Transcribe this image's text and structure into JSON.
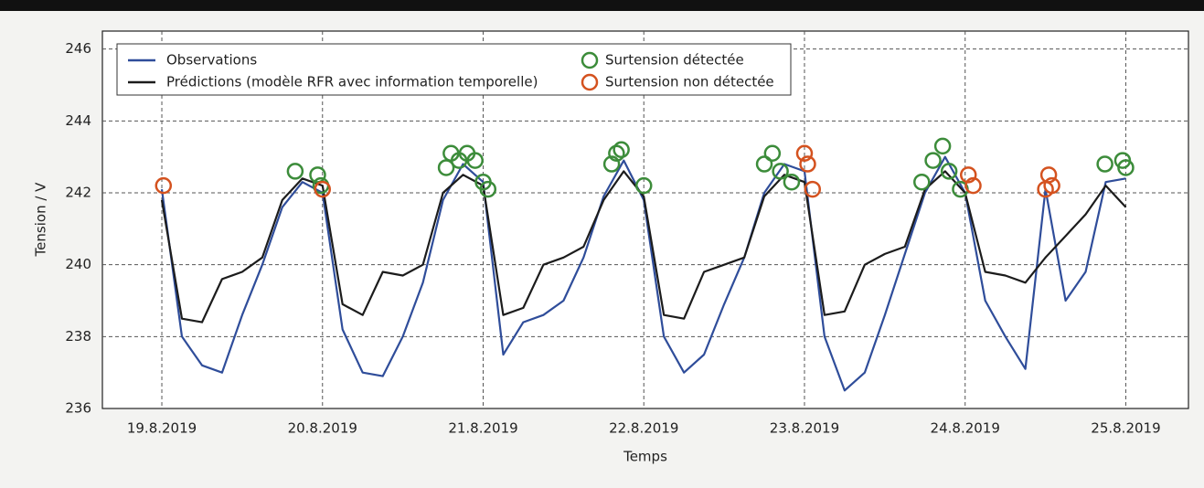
{
  "chart_data": {
    "type": "line",
    "xlabel": "Temps",
    "ylabel": "Tension / V",
    "legend": "upper left",
    "grid": true,
    "xlim": [
      18.63,
      25.39
    ],
    "xticks": [
      {
        "value": 19,
        "label": "19.8.2019"
      },
      {
        "value": 20,
        "label": "20.8.2019"
      },
      {
        "value": 21,
        "label": "21.8.2019"
      },
      {
        "value": 22,
        "label": "22.8.2019"
      },
      {
        "value": 23,
        "label": "23.8.2019"
      },
      {
        "value": 24,
        "label": "24.8.2019"
      },
      {
        "value": 25,
        "label": "25.8.2019"
      }
    ],
    "ylim": [
      236,
      246.5
    ],
    "yticks": [
      236,
      238,
      240,
      242,
      244,
      246
    ],
    "x": [
      19.0,
      19.125,
      19.25,
      19.375,
      19.5,
      19.625,
      19.75,
      19.875,
      20.0,
      20.125,
      20.25,
      20.375,
      20.5,
      20.625,
      20.75,
      20.875,
      21.0,
      21.125,
      21.25,
      21.375,
      21.5,
      21.625,
      21.75,
      21.875,
      22.0,
      22.125,
      22.25,
      22.375,
      22.5,
      22.625,
      22.75,
      22.875,
      23.0,
      23.125,
      23.25,
      23.375,
      23.5,
      23.625,
      23.75,
      23.875,
      24.0,
      24.125,
      24.25,
      24.375,
      24.5,
      24.625,
      24.75,
      24.875,
      25.0
    ],
    "series": [
      {
        "name": "Observations",
        "color": "#2f4d9a",
        "values": [
          242.1,
          238.0,
          237.2,
          237.0,
          238.6,
          240.0,
          241.6,
          242.3,
          242.0,
          238.2,
          237.0,
          236.9,
          238.0,
          239.5,
          241.8,
          242.8,
          242.3,
          237.5,
          238.4,
          238.6,
          239.0,
          240.2,
          241.9,
          242.9,
          241.8,
          238.0,
          237.0,
          237.5,
          238.9,
          240.2,
          242.0,
          242.8,
          242.6,
          238.0,
          236.5,
          237.0,
          238.6,
          240.3,
          242.0,
          243.0,
          242.0,
          239.0,
          238.0,
          237.1,
          242.1,
          239.0,
          239.8,
          242.3,
          242.4
        ]
      },
      {
        "name": "Prédictions (modèle RFR avec information temporelle)",
        "color": "#1c1c1c",
        "values": [
          241.8,
          238.5,
          238.4,
          239.6,
          239.8,
          240.2,
          241.8,
          242.4,
          242.2,
          238.9,
          238.6,
          239.8,
          239.7,
          240.0,
          242.0,
          242.5,
          242.2,
          238.6,
          238.8,
          240.0,
          240.2,
          240.5,
          241.8,
          242.6,
          241.9,
          238.6,
          238.5,
          239.8,
          240.0,
          240.2,
          241.9,
          242.5,
          242.3,
          238.6,
          238.7,
          240.0,
          240.3,
          240.5,
          242.1,
          242.6,
          242.0,
          239.8,
          239.7,
          239.5,
          240.2,
          240.8,
          241.4,
          242.2,
          241.6
        ]
      },
      {
        "name": "Surtension détectée",
        "type": "scatter",
        "color": "#3c8c3a",
        "x": [
          19.83,
          19.97,
          19.99,
          20.77,
          20.8,
          20.85,
          20.9,
          20.95,
          21.0,
          21.03,
          21.8,
          21.83,
          21.86,
          22.0,
          22.75,
          22.8,
          22.85,
          22.92,
          23.73,
          23.8,
          23.86,
          23.9,
          23.97,
          24.87,
          24.98,
          25.0
        ],
        "values": [
          242.6,
          242.5,
          242.2,
          242.7,
          243.1,
          242.9,
          243.1,
          242.9,
          242.3,
          242.1,
          242.8,
          243.1,
          243.2,
          242.2,
          242.8,
          243.1,
          242.6,
          242.3,
          242.3,
          242.9,
          243.3,
          242.6,
          242.1,
          242.8,
          242.9,
          242.7
        ]
      },
      {
        "name": "Surtension non détectée",
        "type": "scatter",
        "color": "#d4521f",
        "x": [
          19.01,
          20.0,
          23.0,
          23.02,
          23.05,
          24.02,
          24.05,
          24.5,
          24.52,
          24.54
        ],
        "values": [
          242.2,
          242.1,
          243.1,
          242.8,
          242.1,
          242.5,
          242.2,
          242.1,
          242.5,
          242.2
        ]
      }
    ]
  }
}
